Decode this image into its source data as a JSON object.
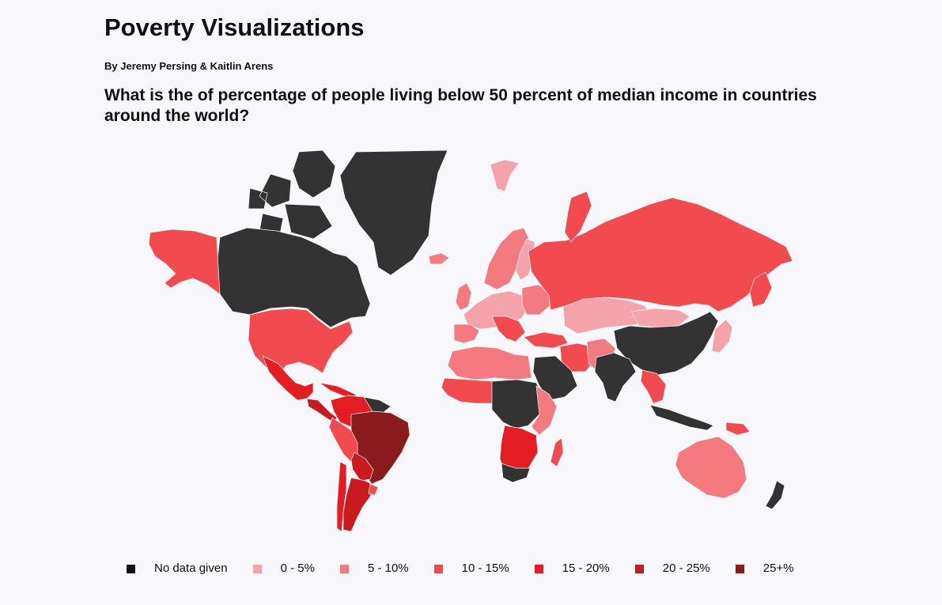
{
  "header": {
    "title": "Poverty Visualizations",
    "byline": "By Jeremy Persing & Kaitlin Arens",
    "question": "What is the of percentage of people living below 50 percent of median income in countries around the world?"
  },
  "colors": {
    "background": "#f8f8fc",
    "no_data": "#333333",
    "bin_0_5": "#f5a3aa",
    "bin_5_10": "#f47a80",
    "bin_10_15": "#f24a4e",
    "bin_15_20": "#e51d22",
    "bin_20_25": "#c91b1f",
    "bin_25_plus": "#8b1a1d",
    "region_20_25_dark": "#b3262b",
    "region_25_plus": "#8f2b30"
  },
  "legend": {
    "items": [
      {
        "label": "No data given",
        "color": "#111111"
      },
      {
        "label": "0 - 5%",
        "color": "#f5a3aa"
      },
      {
        "label": "5 - 10%",
        "color": "#f47a80"
      },
      {
        "label": "10 - 15%",
        "color": "#f24a4e"
      },
      {
        "label": "15 - 20%",
        "color": "#e51d22"
      },
      {
        "label": "20 - 25%",
        "color": "#c91b1f"
      },
      {
        "label": "25+%",
        "color": "#8b1a1d"
      }
    ]
  }
}
